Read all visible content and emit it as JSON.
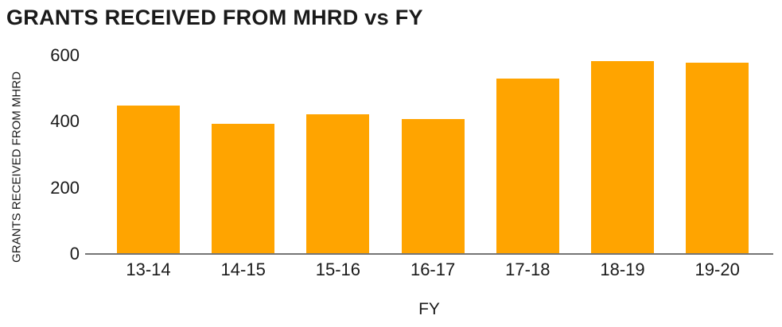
{
  "chart_data": {
    "type": "bar",
    "title": "GRANTS RECEIVED FROM MHRD vs FY",
    "xlabel": "FY",
    "ylabel": "GRANTS RECEIVED FROM MHRD",
    "categories": [
      "13-14",
      "14-15",
      "15-16",
      "16-17",
      "17-18",
      "18-19",
      "19-20"
    ],
    "values": [
      449,
      394,
      422,
      408,
      530,
      583,
      578
    ],
    "ylim": [
      0,
      600
    ],
    "yticks": [
      0,
      200,
      400,
      600
    ],
    "grid": false,
    "legend_position": "none",
    "colors": {
      "bar": "#FFA400",
      "axis_line": "#757575",
      "text": "#1a1a1a",
      "background": "#ffffff"
    }
  }
}
